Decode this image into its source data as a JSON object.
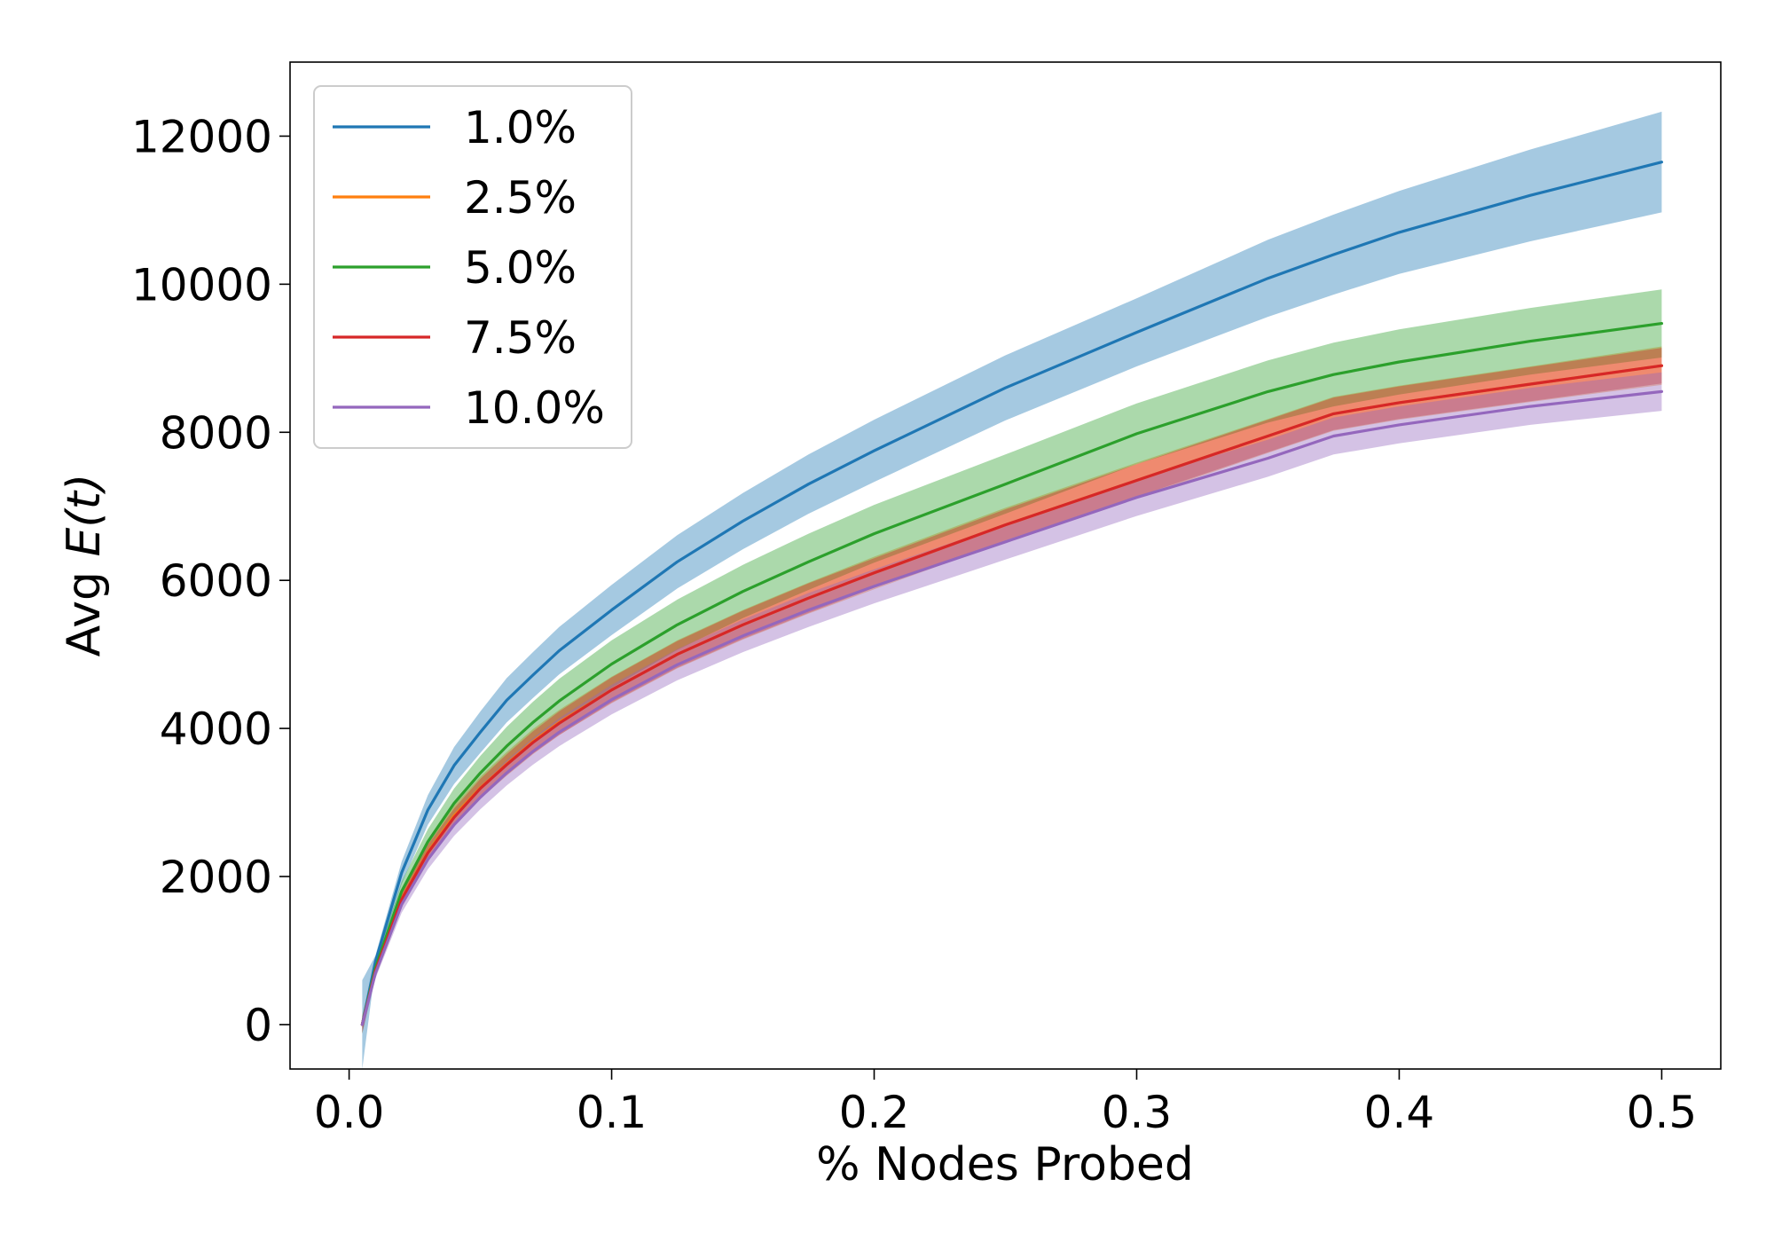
{
  "chart_data": {
    "type": "line",
    "xlabel": "% Nodes Probed",
    "ylabel_prefix": "Avg ",
    "ylabel_math": "E(t)",
    "xlim": [
      -0.0225,
      0.5225
    ],
    "ylim": [
      -600,
      13000
    ],
    "x_ticks": [
      0.0,
      0.1,
      0.2,
      0.3,
      0.4,
      0.5
    ],
    "x_tick_labels": [
      "0.0",
      "0.1",
      "0.2",
      "0.3",
      "0.4",
      "0.5"
    ],
    "y_ticks": [
      0,
      2000,
      4000,
      6000,
      8000,
      10000,
      12000
    ],
    "y_tick_labels": [
      "0",
      "2000",
      "4000",
      "6000",
      "8000",
      "10000",
      "12000"
    ],
    "grid": false,
    "legend_position": "top-left",
    "x": [
      0.005,
      0.01,
      0.02,
      0.03,
      0.04,
      0.05,
      0.06,
      0.07,
      0.08,
      0.1,
      0.125,
      0.15,
      0.175,
      0.2,
      0.25,
      0.3,
      0.35,
      0.375,
      0.4,
      0.45,
      0.5
    ],
    "series": [
      {
        "name": "1.0%",
        "color": "#1f77b4",
        "values": [
          0,
          850,
          2050,
          2900,
          3500,
          3950,
          4380,
          4720,
          5050,
          5600,
          6250,
          6800,
          7300,
          7750,
          8600,
          9350,
          10080,
          10400,
          10700,
          11200,
          11650
        ],
        "band": [
          600,
          80,
          150,
          200,
          250,
          280,
          300,
          310,
          320,
          340,
          360,
          380,
          400,
          420,
          440,
          460,
          520,
          540,
          560,
          620,
          680
        ]
      },
      {
        "name": "2.5%",
        "color": "#ff7f0e",
        "values": [
          0,
          720,
          1700,
          2330,
          2820,
          3200,
          3520,
          3820,
          4080,
          4520,
          5000,
          5400,
          5760,
          6100,
          6750,
          7350,
          7950,
          8250,
          8400,
          8650,
          8900
        ],
        "band": [
          120,
          60,
          100,
          120,
          140,
          150,
          160,
          170,
          170,
          180,
          190,
          200,
          210,
          220,
          230,
          240,
          230,
          230,
          230,
          240,
          260
        ]
      },
      {
        "name": "5.0%",
        "color": "#2ca02c",
        "values": [
          0,
          760,
          1800,
          2470,
          2990,
          3400,
          3760,
          4080,
          4370,
          4870,
          5400,
          5850,
          6250,
          6630,
          7300,
          7980,
          8550,
          8780,
          8950,
          9230,
          9470
        ],
        "band": [
          120,
          80,
          130,
          170,
          200,
          230,
          260,
          280,
          300,
          320,
          340,
          360,
          380,
          390,
          400,
          410,
          420,
          430,
          440,
          450,
          460
        ]
      },
      {
        "name": "7.5%",
        "color": "#d62728",
        "values": [
          0,
          720,
          1690,
          2320,
          2800,
          3190,
          3510,
          3810,
          4070,
          4520,
          5000,
          5400,
          5760,
          6100,
          6750,
          7350,
          7950,
          8250,
          8400,
          8650,
          8900
        ],
        "band": [
          100,
          60,
          90,
          110,
          120,
          130,
          140,
          150,
          160,
          170,
          180,
          190,
          200,
          200,
          210,
          220,
          220,
          220,
          220,
          230,
          240
        ]
      },
      {
        "name": "10.0%",
        "color": "#9467bd",
        "values": [
          0,
          690,
          1620,
          2230,
          2700,
          3070,
          3400,
          3690,
          3950,
          4390,
          4860,
          5250,
          5600,
          5920,
          6520,
          7120,
          7650,
          7950,
          8100,
          8350,
          8550
        ],
        "band": [
          120,
          70,
          110,
          130,
          150,
          160,
          170,
          180,
          190,
          200,
          210,
          220,
          230,
          230,
          240,
          250,
          250,
          250,
          250,
          250,
          260
        ]
      }
    ]
  }
}
